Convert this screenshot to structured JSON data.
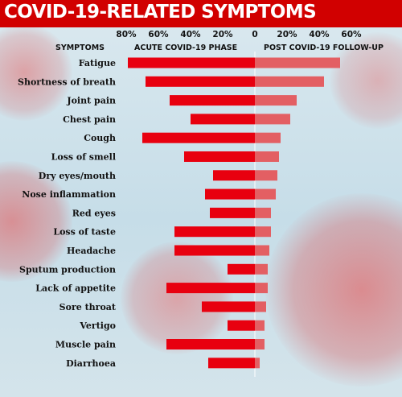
{
  "title": "COVID-19-RELATED SYMPTOMS",
  "colors": {
    "header_bg": "#d10000",
    "acute_bar": "#e8000f",
    "post_bar": "#e35f63",
    "background": "#cfe2ea"
  },
  "chart_data": {
    "type": "bar",
    "orientation": "horizontal-diverging",
    "category_header": "SYMPTOMS",
    "categories": [
      "Fatigue",
      "Shortness of breath",
      "Joint pain",
      "Chest pain",
      "Cough",
      "Loss of smell",
      "Dry eyes/mouth",
      "Nose inflammation",
      "Red eyes",
      "Loss of taste",
      "Headache",
      "Sputum production",
      "Lack of appetite",
      "Sore throat",
      "Vertigo",
      "Muscle pain",
      "Diarrhoea"
    ],
    "left_ticks": [
      "80%",
      "60%",
      "40%",
      "20%",
      "0"
    ],
    "right_ticks": [
      "20%",
      "40%",
      "60%"
    ],
    "xlim_left": [
      80,
      0
    ],
    "xlim_right": [
      0,
      60
    ],
    "series": [
      {
        "name": "ACUTE COVID-19 PHASE",
        "side": "left",
        "values": [
          79,
          68,
          53,
          40,
          70,
          44,
          26,
          31,
          28,
          50,
          50,
          17,
          55,
          33,
          17,
          55,
          29
        ]
      },
      {
        "name": "POST COVID-19 FOLLOW-UP",
        "side": "right",
        "values": [
          53,
          43,
          26,
          22,
          16,
          15,
          14,
          13,
          10,
          10,
          9,
          8,
          8,
          7,
          6,
          6,
          3
        ]
      }
    ]
  }
}
